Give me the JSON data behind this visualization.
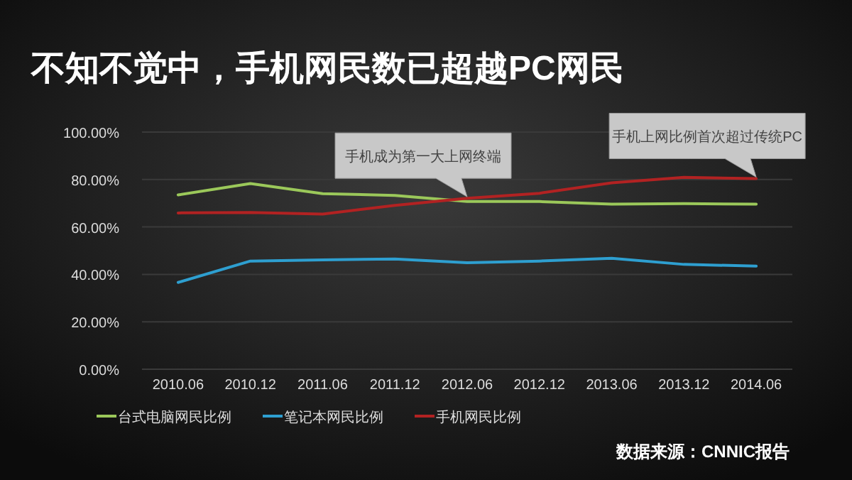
{
  "chart_data": {
    "type": "line",
    "title": "不知不觉中，手机网民数已超越PC网民",
    "categories": [
      "2010.06",
      "2010.12",
      "2011.06",
      "2011.12",
      "2012.06",
      "2012.12",
      "2013.06",
      "2013.12",
      "2014.06"
    ],
    "series": [
      {
        "name": "台式电脑网民比例",
        "color": "#9bc85a",
        "values": [
          73.5,
          78.3,
          74.0,
          73.3,
          70.7,
          70.7,
          69.6,
          69.8,
          69.6
        ]
      },
      {
        "name": "笔记本网民比例",
        "color": "#2e9fd0",
        "values": [
          36.6,
          45.6,
          46.1,
          46.5,
          44.9,
          45.6,
          46.8,
          44.2,
          43.5
        ]
      },
      {
        "name": "手机网民比例",
        "color": "#b22222",
        "values": [
          65.9,
          66.1,
          65.4,
          69.1,
          72.1,
          74.2,
          78.6,
          80.9,
          80.4
        ]
      }
    ],
    "ylim": [
      0,
      100
    ],
    "yticks": [
      {
        "value": 0,
        "label": "0.00%"
      },
      {
        "value": 20,
        "label": "20.00%"
      },
      {
        "value": 40,
        "label": "40.00%"
      },
      {
        "value": 60,
        "label": "60.00%"
      },
      {
        "value": 80,
        "label": "80.00%"
      },
      {
        "value": 100,
        "label": "100.00%"
      }
    ],
    "grid": "y",
    "legend": "bottom left",
    "line_style": "solid",
    "annotations": [
      {
        "text": "手机成为第一大上网终端",
        "x": "2012.06",
        "y": 72.1
      },
      {
        "text": "手机上网比例首次超过传统PC",
        "x": "2014.06",
        "y": 80.4
      },
      "数据来源：CNNIC报告"
    ]
  }
}
